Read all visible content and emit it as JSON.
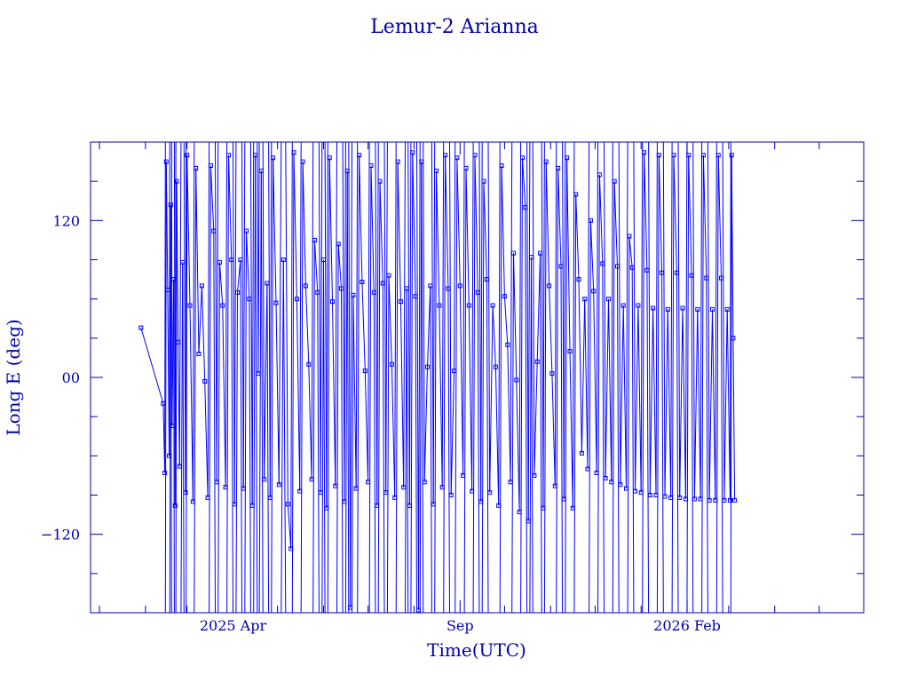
{
  "chart_data": {
    "type": "line",
    "title": "Lemur-2 Arianna",
    "xlabel": "Time(UTC)",
    "ylabel": "Long E (deg)",
    "x_range": [
      "2024-12-26",
      "2026-05-31"
    ],
    "ylim": [
      -180,
      180
    ],
    "x_tick_labels": [
      {
        "date": "2025-04-01",
        "label": "2025 Apr"
      },
      {
        "date": "2025-09-01",
        "label": "Sep"
      },
      {
        "date": "2026-02-01",
        "label": "2026 Feb"
      }
    ],
    "y_tick_labels": [
      {
        "value": 120,
        "label": "120"
      },
      {
        "value": 0,
        "label": "00"
      },
      {
        "value": -120,
        "label": "−120"
      }
    ],
    "grid": false,
    "line_color": "#0000ff",
    "axis_color": "#0000aa",
    "series": [
      {
        "values": [
          {
            "x": "2025-01-29",
            "y": 38
          },
          {
            "x": "2025-02-13",
            "y": -20
          },
          {
            "x": "2025-02-14",
            "y": -73
          },
          {
            "x": "2025-02-15",
            "y": 165
          },
          {
            "x": "2025-02-16",
            "y": 67
          },
          {
            "x": "2025-02-17",
            "y": -60
          },
          {
            "x": "2025-02-18",
            "y": 132
          },
          {
            "x": "2025-02-19",
            "y": -37
          },
          {
            "x": "2025-02-20",
            "y": 75
          },
          {
            "x": "2025-02-21",
            "y": -98
          },
          {
            "x": "2025-02-22",
            "y": 150
          },
          {
            "x": "2025-02-23",
            "y": 27
          },
          {
            "x": "2025-02-24",
            "y": -68
          },
          {
            "x": "2025-02-26",
            "y": 88
          },
          {
            "x": "2025-02-28",
            "y": -88
          },
          {
            "x": "2025-03-01",
            "y": 170
          },
          {
            "x": "2025-03-03",
            "y": 55
          },
          {
            "x": "2025-03-05",
            "y": -95
          },
          {
            "x": "2025-03-07",
            "y": 160
          },
          {
            "x": "2025-03-09",
            "y": 18
          },
          {
            "x": "2025-03-11",
            "y": 70
          },
          {
            "x": "2025-03-13",
            "y": -3
          },
          {
            "x": "2025-03-15",
            "y": -92
          },
          {
            "x": "2025-03-17",
            "y": 162
          },
          {
            "x": "2025-03-19",
            "y": 112
          },
          {
            "x": "2025-03-21",
            "y": -80
          },
          {
            "x": "2025-03-23",
            "y": 88
          },
          {
            "x": "2025-03-25",
            "y": 55
          },
          {
            "x": "2025-03-27",
            "y": -84
          },
          {
            "x": "2025-03-29",
            "y": 170
          },
          {
            "x": "2025-03-31",
            "y": 90
          },
          {
            "x": "2025-04-02",
            "y": -97
          },
          {
            "x": "2025-04-04",
            "y": 65
          },
          {
            "x": "2025-04-06",
            "y": 90
          },
          {
            "x": "2025-04-08",
            "y": -85
          },
          {
            "x": "2025-04-10",
            "y": 112
          },
          {
            "x": "2025-04-12",
            "y": 60
          },
          {
            "x": "2025-04-14",
            "y": -98
          },
          {
            "x": "2025-04-16",
            "y": 170
          },
          {
            "x": "2025-04-18",
            "y": 3
          },
          {
            "x": "2025-04-20",
            "y": 158
          },
          {
            "x": "2025-04-22",
            "y": -78
          },
          {
            "x": "2025-04-24",
            "y": 72
          },
          {
            "x": "2025-04-26",
            "y": -92
          },
          {
            "x": "2025-04-28",
            "y": 168
          },
          {
            "x": "2025-04-30",
            "y": 57
          },
          {
            "x": "2025-05-02",
            "y": -82
          },
          {
            "x": "2025-05-05",
            "y": 90
          },
          {
            "x": "2025-05-08",
            "y": -97
          },
          {
            "x": "2025-05-10",
            "y": -131
          },
          {
            "x": "2025-05-12",
            "y": 172
          },
          {
            "x": "2025-05-14",
            "y": 60
          },
          {
            "x": "2025-05-16",
            "y": -87
          },
          {
            "x": "2025-05-18",
            "y": 165
          },
          {
            "x": "2025-05-20",
            "y": 70
          },
          {
            "x": "2025-05-22",
            "y": 10
          },
          {
            "x": "2025-05-24",
            "y": -78
          },
          {
            "x": "2025-05-26",
            "y": 105
          },
          {
            "x": "2025-05-28",
            "y": 65
          },
          {
            "x": "2025-05-30",
            "y": -88
          },
          {
            "x": "2025-06-01",
            "y": 90
          },
          {
            "x": "2025-06-03",
            "y": -100
          },
          {
            "x": "2025-06-05",
            "y": 168
          },
          {
            "x": "2025-06-07",
            "y": 58
          },
          {
            "x": "2025-06-09",
            "y": -83
          },
          {
            "x": "2025-06-11",
            "y": 102
          },
          {
            "x": "2025-06-13",
            "y": 68
          },
          {
            "x": "2025-06-15",
            "y": -95
          },
          {
            "x": "2025-06-17",
            "y": 158
          },
          {
            "x": "2025-06-19",
            "y": -176
          },
          {
            "x": "2025-06-21",
            "y": 63
          },
          {
            "x": "2025-06-23",
            "y": -85
          },
          {
            "x": "2025-06-25",
            "y": 170
          },
          {
            "x": "2025-06-27",
            "y": 73
          },
          {
            "x": "2025-06-29",
            "y": 5
          },
          {
            "x": "2025-07-01",
            "y": -80
          },
          {
            "x": "2025-07-03",
            "y": 162
          },
          {
            "x": "2025-07-05",
            "y": 65
          },
          {
            "x": "2025-07-07",
            "y": -98
          },
          {
            "x": "2025-07-09",
            "y": 150
          },
          {
            "x": "2025-07-11",
            "y": 72
          },
          {
            "x": "2025-07-13",
            "y": -88
          },
          {
            "x": "2025-07-15",
            "y": 78
          },
          {
            "x": "2025-07-17",
            "y": 10
          },
          {
            "x": "2025-07-19",
            "y": -92
          },
          {
            "x": "2025-07-21",
            "y": 165
          },
          {
            "x": "2025-07-23",
            "y": 58
          },
          {
            "x": "2025-07-25",
            "y": -84
          },
          {
            "x": "2025-07-27",
            "y": 68
          },
          {
            "x": "2025-07-29",
            "y": -98
          },
          {
            "x": "2025-07-31",
            "y": 172
          },
          {
            "x": "2025-08-02",
            "y": 62
          },
          {
            "x": "2025-08-04",
            "y": -178
          },
          {
            "x": "2025-08-06",
            "y": 165
          },
          {
            "x": "2025-08-08",
            "y": -80
          },
          {
            "x": "2025-08-10",
            "y": 8
          },
          {
            "x": "2025-08-12",
            "y": 70
          },
          {
            "x": "2025-08-14",
            "y": -97
          },
          {
            "x": "2025-08-16",
            "y": 158
          },
          {
            "x": "2025-08-18",
            "y": 55
          },
          {
            "x": "2025-08-20",
            "y": -84
          },
          {
            "x": "2025-08-22",
            "y": 170
          },
          {
            "x": "2025-08-24",
            "y": 68
          },
          {
            "x": "2025-08-26",
            "y": -90
          },
          {
            "x": "2025-08-28",
            "y": 5
          },
          {
            "x": "2025-08-30",
            "y": 168
          },
          {
            "x": "2025-09-01",
            "y": 70
          },
          {
            "x": "2025-09-03",
            "y": -75
          },
          {
            "x": "2025-09-05",
            "y": 160
          },
          {
            "x": "2025-09-07",
            "y": 55
          },
          {
            "x": "2025-09-09",
            "y": -87
          },
          {
            "x": "2025-09-11",
            "y": 170
          },
          {
            "x": "2025-09-13",
            "y": 65
          },
          {
            "x": "2025-09-15",
            "y": -95
          },
          {
            "x": "2025-09-17",
            "y": 150
          },
          {
            "x": "2025-09-19",
            "y": 75
          },
          {
            "x": "2025-09-21",
            "y": -88
          },
          {
            "x": "2025-09-23",
            "y": 55
          },
          {
            "x": "2025-09-25",
            "y": 8
          },
          {
            "x": "2025-09-27",
            "y": -98
          },
          {
            "x": "2025-09-29",
            "y": 162
          },
          {
            "x": "2025-10-01",
            "y": 62
          },
          {
            "x": "2025-10-03",
            "y": 25
          },
          {
            "x": "2025-10-05",
            "y": -80
          },
          {
            "x": "2025-10-07",
            "y": 95
          },
          {
            "x": "2025-10-09",
            "y": -2
          },
          {
            "x": "2025-10-11",
            "y": -103
          },
          {
            "x": "2025-10-13",
            "y": 168
          },
          {
            "x": "2025-10-15",
            "y": 130
          },
          {
            "x": "2025-10-17",
            "y": -110
          },
          {
            "x": "2025-10-19",
            "y": 92
          },
          {
            "x": "2025-10-21",
            "y": -75
          },
          {
            "x": "2025-10-23",
            "y": 12
          },
          {
            "x": "2025-10-25",
            "y": 95
          },
          {
            "x": "2025-10-27",
            "y": -100
          },
          {
            "x": "2025-10-29",
            "y": 165
          },
          {
            "x": "2025-10-31",
            "y": 70
          },
          {
            "x": "2025-11-02",
            "y": 3
          },
          {
            "x": "2025-11-04",
            "y": -83
          },
          {
            "x": "2025-11-06",
            "y": 160
          },
          {
            "x": "2025-11-08",
            "y": 85
          },
          {
            "x": "2025-11-10",
            "y": -93
          },
          {
            "x": "2025-11-12",
            "y": 168
          },
          {
            "x": "2025-11-14",
            "y": 20
          },
          {
            "x": "2025-11-16",
            "y": -100
          },
          {
            "x": "2025-11-18",
            "y": 140
          },
          {
            "x": "2025-11-20",
            "y": 75
          },
          {
            "x": "2025-11-22",
            "y": -58
          },
          {
            "x": "2025-11-24",
            "y": 60
          },
          {
            "x": "2025-11-26",
            "y": -70
          },
          {
            "x": "2025-11-28",
            "y": 120
          },
          {
            "x": "2025-11-30",
            "y": 66
          },
          {
            "x": "2025-12-02",
            "y": -73
          },
          {
            "x": "2025-12-04",
            "y": 155
          },
          {
            "x": "2025-12-06",
            "y": 87
          },
          {
            "x": "2025-12-08",
            "y": -77
          },
          {
            "x": "2025-12-10",
            "y": 60
          },
          {
            "x": "2025-12-12",
            "y": -80
          },
          {
            "x": "2025-12-14",
            "y": 150
          },
          {
            "x": "2025-12-16",
            "y": 85
          },
          {
            "x": "2025-12-18",
            "y": -82
          },
          {
            "x": "2025-12-20",
            "y": 55
          },
          {
            "x": "2025-12-22",
            "y": -85
          },
          {
            "x": "2025-12-24",
            "y": 108
          },
          {
            "x": "2025-12-26",
            "y": 84
          },
          {
            "x": "2025-12-28",
            "y": -87
          },
          {
            "x": "2025-12-30",
            "y": 55
          },
          {
            "x": "2026-01-01",
            "y": -88
          },
          {
            "x": "2026-01-03",
            "y": 172
          },
          {
            "x": "2026-01-05",
            "y": 82
          },
          {
            "x": "2026-01-07",
            "y": -90
          },
          {
            "x": "2026-01-09",
            "y": 53
          },
          {
            "x": "2026-01-11",
            "y": -90
          },
          {
            "x": "2026-01-13",
            "y": 170
          },
          {
            "x": "2026-01-15",
            "y": 80
          },
          {
            "x": "2026-01-17",
            "y": -91
          },
          {
            "x": "2026-01-19",
            "y": 52
          },
          {
            "x": "2026-01-21",
            "y": -92
          },
          {
            "x": "2026-01-23",
            "y": 170
          },
          {
            "x": "2026-01-25",
            "y": 80
          },
          {
            "x": "2026-01-27",
            "y": -92
          },
          {
            "x": "2026-01-29",
            "y": 53
          },
          {
            "x": "2026-01-31",
            "y": -93
          },
          {
            "x": "2026-02-02",
            "y": 170
          },
          {
            "x": "2026-02-04",
            "y": 78
          },
          {
            "x": "2026-02-06",
            "y": -93
          },
          {
            "x": "2026-02-08",
            "y": 52
          },
          {
            "x": "2026-02-10",
            "y": -93
          },
          {
            "x": "2026-02-12",
            "y": 170
          },
          {
            "x": "2026-02-14",
            "y": 76
          },
          {
            "x": "2026-02-16",
            "y": -94
          },
          {
            "x": "2026-02-18",
            "y": 52
          },
          {
            "x": "2026-02-20",
            "y": -94
          },
          {
            "x": "2026-02-22",
            "y": 170
          },
          {
            "x": "2026-02-24",
            "y": 76
          },
          {
            "x": "2026-02-26",
            "y": -94
          },
          {
            "x": "2026-02-28",
            "y": 52
          },
          {
            "x": "2026-03-02",
            "y": -94
          },
          {
            "x": "2026-03-03",
            "y": 170
          },
          {
            "x": "2026-03-04",
            "y": 30
          },
          {
            "x": "2026-03-05",
            "y": -94
          }
        ]
      }
    ]
  }
}
